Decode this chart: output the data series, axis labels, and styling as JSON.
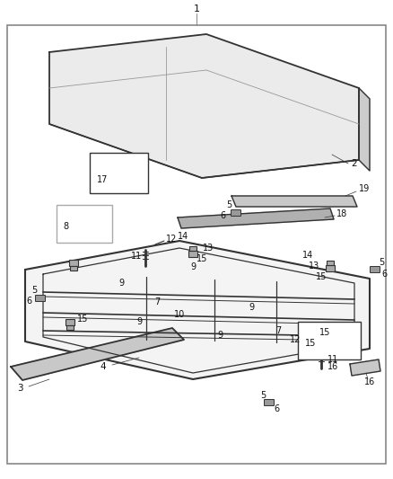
{
  "background": "#ffffff",
  "border_color": "#888888",
  "line_color": "#333333",
  "figsize": [
    4.38,
    5.33
  ],
  "dpi": 100,
  "label1": "1",
  "label2": "2",
  "label3": "3",
  "label4": "4",
  "label5": "5",
  "label6": "6",
  "label7": "7",
  "label8": "8",
  "label9": "9",
  "label10": "10",
  "label11": "11",
  "label12": "12",
  "label13": "13",
  "label14": "14",
  "label15": "15",
  "label16": "16",
  "label17": "17",
  "label18": "18",
  "label19": "19",
  "cover_fill": "#e8e8e8",
  "cover_side_fill": "#cccccc",
  "frame_fill": "#f0f0f0",
  "seal_fill": "#c8c8c8",
  "bracket_fill": "#aaaaaa",
  "box_edge": "#555555"
}
